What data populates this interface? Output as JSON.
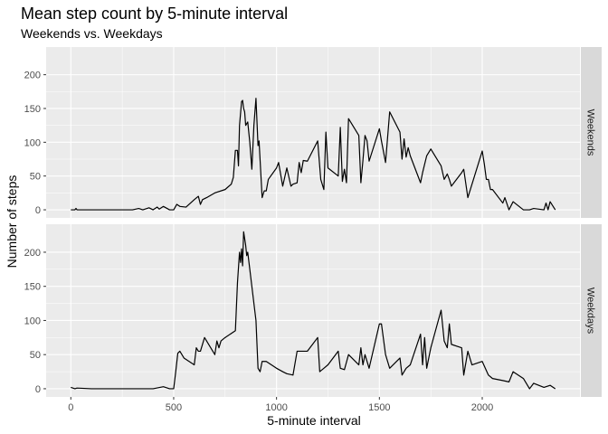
{
  "chart_data": {
    "type": "line",
    "title": "Mean step count by 5-minute interval",
    "subtitle": "Weekends vs. Weekdays",
    "xlabel": "5-minute interval",
    "ylabel": "Number of steps",
    "xlim": [
      0,
      2355
    ],
    "ylim": [
      0,
      240
    ],
    "x_ticks": [
      0,
      500,
      1000,
      1500,
      2000
    ],
    "y_ticks": [
      0,
      50,
      100,
      150,
      200
    ],
    "grid": true,
    "line_color": "#000000",
    "panel_background": "#ebebeb",
    "strip_background": "#d9d9d9",
    "panels": [
      {
        "name": "Weekends",
        "x": [
          0,
          20,
          25,
          30,
          100,
          200,
          300,
          330,
          350,
          380,
          400,
          420,
          430,
          450,
          480,
          500,
          515,
          530,
          560,
          600,
          620,
          630,
          640,
          660,
          700,
          750,
          780,
          790,
          800,
          810,
          815,
          820,
          830,
          835,
          840,
          845,
          850,
          860,
          870,
          880,
          890,
          900,
          910,
          915,
          930,
          940,
          950,
          960,
          1000,
          1010,
          1030,
          1050,
          1070,
          1080,
          1100,
          1110,
          1120,
          1130,
          1150,
          1200,
          1215,
          1230,
          1240,
          1250,
          1300,
          1310,
          1320,
          1330,
          1340,
          1350,
          1400,
          1410,
          1420,
          1430,
          1440,
          1450,
          1500,
          1510,
          1530,
          1550,
          1600,
          1610,
          1620,
          1630,
          1640,
          1650,
          1700,
          1710,
          1730,
          1750,
          1800,
          1815,
          1830,
          1840,
          1850,
          1900,
          1910,
          1930,
          2000,
          2010,
          2020,
          2030,
          2040,
          2050,
          2100,
          2110,
          2130,
          2150,
          2200,
          2210,
          2230,
          2250,
          2300,
          2310,
          2320,
          2330,
          2355
        ],
        "y": [
          0,
          0,
          2,
          0,
          0,
          0,
          0,
          2,
          0,
          3,
          0,
          4,
          1,
          5,
          0,
          0,
          8,
          5,
          4,
          15,
          20,
          8,
          15,
          18,
          25,
          30,
          38,
          48,
          88,
          88,
          65,
          125,
          160,
          162,
          150,
          145,
          125,
          130,
          100,
          60,
          125,
          165,
          95,
          102,
          18,
          28,
          28,
          45,
          62,
          70,
          35,
          62,
          35,
          38,
          40,
          70,
          55,
          73,
          72,
          102,
          45,
          30,
          115,
          62,
          50,
          122,
          42,
          60,
          40,
          135,
          110,
          40,
          73,
          110,
          102,
          72,
          120,
          102,
          70,
          145,
          115,
          75,
          105,
          78,
          92,
          80,
          40,
          55,
          80,
          90,
          65,
          45,
          53,
          45,
          35,
          55,
          60,
          18,
          87,
          68,
          45,
          45,
          30,
          30,
          10,
          18,
          0,
          12,
          0,
          0,
          0,
          2,
          0,
          10,
          0,
          12,
          0
        ]
      },
      {
        "name": "Weekdays",
        "x": [
          0,
          20,
          30,
          100,
          200,
          300,
          350,
          400,
          450,
          480,
          500,
          510,
          520,
          530,
          550,
          600,
          610,
          620,
          630,
          650,
          700,
          710,
          720,
          730,
          750,
          800,
          810,
          820,
          825,
          830,
          835,
          840,
          845,
          850,
          855,
          860,
          870,
          880,
          900,
          910,
          920,
          930,
          950,
          1000,
          1030,
          1050,
          1080,
          1100,
          1130,
          1150,
          1200,
          1210,
          1230,
          1250,
          1300,
          1310,
          1330,
          1350,
          1400,
          1410,
          1420,
          1430,
          1450,
          1500,
          1510,
          1530,
          1550,
          1600,
          1610,
          1620,
          1630,
          1650,
          1700,
          1710,
          1720,
          1730,
          1750,
          1800,
          1815,
          1830,
          1840,
          1850,
          1900,
          1910,
          1930,
          1950,
          2000,
          2030,
          2050,
          2100,
          2130,
          2150,
          2200,
          2230,
          2250,
          2300,
          2330,
          2355
        ],
        "y": [
          2,
          0,
          1,
          0,
          0,
          0,
          0,
          0,
          3,
          0,
          0,
          25,
          52,
          55,
          45,
          35,
          60,
          55,
          55,
          75,
          50,
          70,
          60,
          70,
          75,
          85,
          155,
          200,
          185,
          205,
          180,
          230,
          220,
          210,
          195,
          200,
          175,
          150,
          100,
          30,
          25,
          40,
          40,
          30,
          25,
          22,
          20,
          55,
          55,
          55,
          75,
          25,
          30,
          35,
          55,
          30,
          28,
          50,
          35,
          60,
          35,
          50,
          30,
          95,
          95,
          50,
          30,
          45,
          20,
          25,
          30,
          35,
          80,
          35,
          75,
          30,
          60,
          115,
          70,
          60,
          95,
          65,
          60,
          20,
          55,
          35,
          40,
          20,
          15,
          12,
          10,
          25,
          15,
          0,
          8,
          2,
          5,
          0
        ]
      }
    ]
  }
}
